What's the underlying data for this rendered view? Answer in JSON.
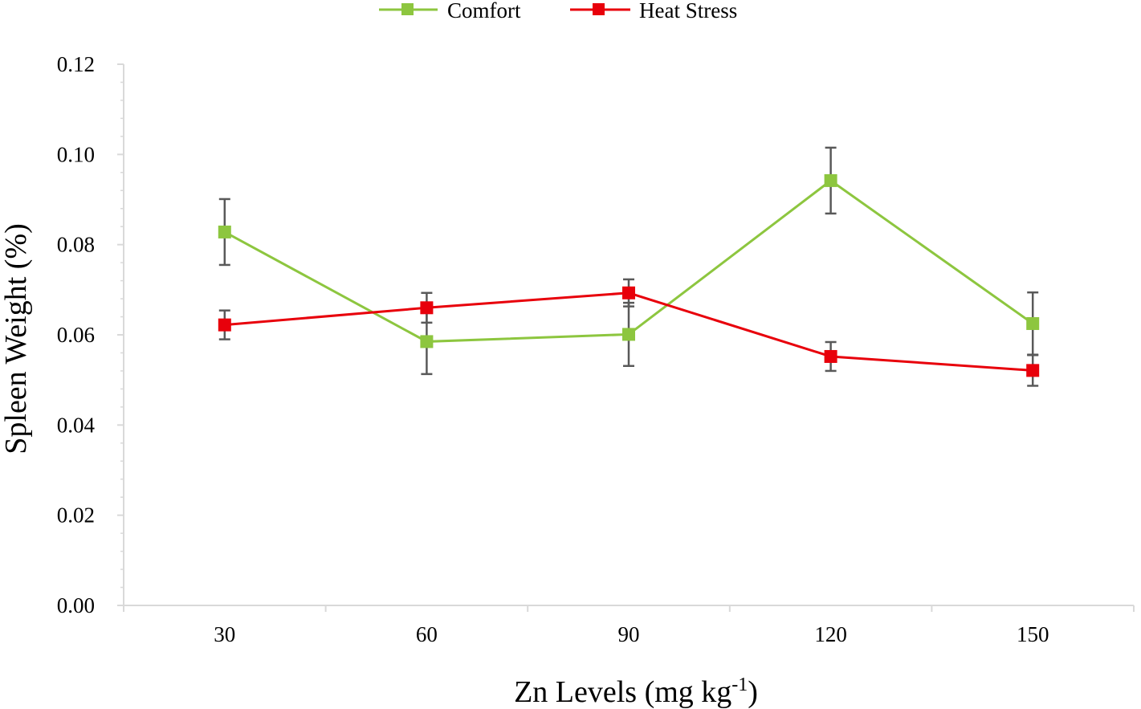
{
  "chart_data": {
    "type": "line",
    "title": "",
    "xlabel": "Zn Levels (mg kg",
    "xlabel_superscript": "-1",
    "xlabel_suffix": ")",
    "ylabel": "Spleen Weight  (%)",
    "categories": [
      "30",
      "60",
      "90",
      "120",
      "150"
    ],
    "ylim": [
      0,
      0.12
    ],
    "y_ticks": [
      "0.00",
      "0.02",
      "0.04",
      "0.06",
      "0.08",
      "0.10",
      "0.12"
    ],
    "legend_position": "top-center",
    "grid": false,
    "series": [
      {
        "name": "Comfort",
        "color": "#8DC63F",
        "values": [
          0.0828,
          0.0585,
          0.0601,
          0.0942,
          0.0625
        ],
        "errors": [
          0.0073,
          0.0072,
          0.007,
          0.0073,
          0.0069
        ]
      },
      {
        "name": "Heat Stress",
        "color": "#E8000B",
        "values": [
          0.0622,
          0.066,
          0.0693,
          0.0552,
          0.0521
        ],
        "errors": [
          0.0032,
          0.0033,
          0.003,
          0.0032,
          0.0034
        ]
      }
    ],
    "error_bar_color": "#595959"
  }
}
